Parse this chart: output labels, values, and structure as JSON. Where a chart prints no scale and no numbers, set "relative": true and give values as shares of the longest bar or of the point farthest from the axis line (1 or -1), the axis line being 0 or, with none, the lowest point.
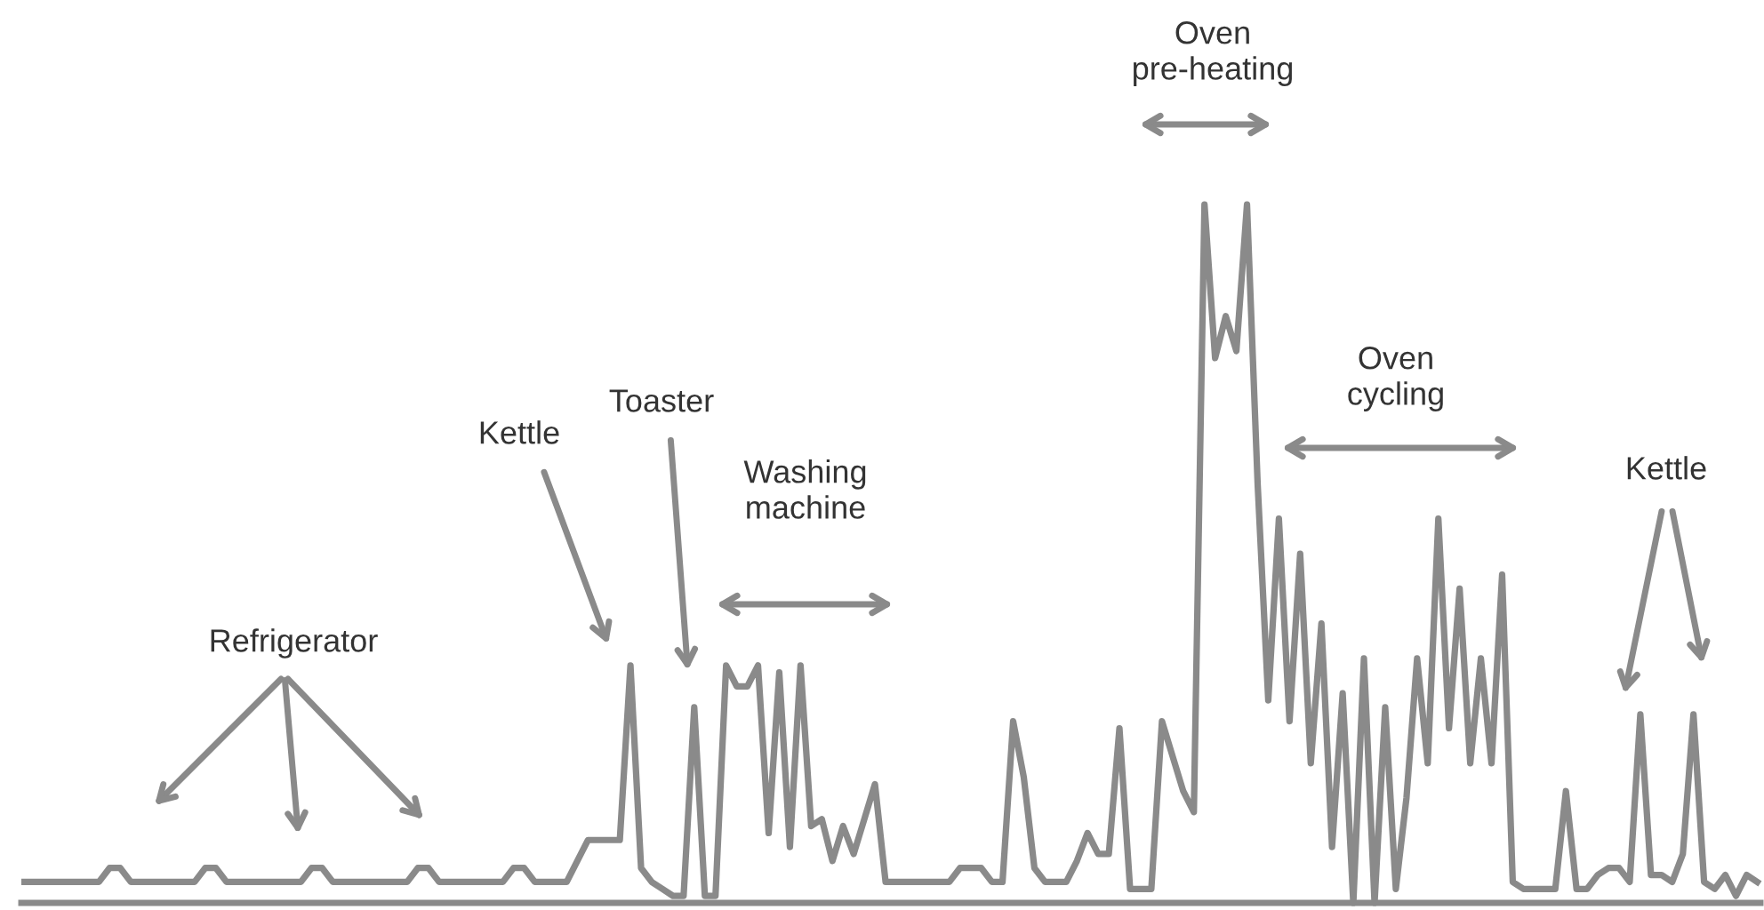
{
  "chart_data": {
    "type": "line",
    "relative": true,
    "categories": [
      null,
      null,
      null,
      null,
      null,
      null,
      null,
      null,
      null,
      null,
      null,
      null,
      null,
      null,
      null,
      null,
      null,
      null,
      null,
      null,
      null,
      null,
      null,
      null,
      null,
      null,
      null,
      null,
      null,
      null,
      null,
      null,
      null,
      null,
      null,
      null,
      null,
      null,
      null,
      null,
      null,
      null,
      null,
      null,
      null,
      null,
      null,
      null,
      null,
      null,
      null,
      null,
      null,
      null,
      null,
      null,
      null,
      null,
      null,
      null,
      null,
      null,
      null,
      null,
      null,
      null,
      null,
      null,
      null,
      null,
      null,
      null,
      null,
      null,
      null,
      null,
      null,
      null,
      null,
      null,
      null,
      null,
      null,
      null,
      null,
      null,
      null,
      null,
      null,
      null,
      null,
      null,
      null,
      null,
      null,
      null,
      null,
      null,
      null,
      null,
      null,
      null,
      null,
      null,
      null,
      null,
      null,
      null,
      null,
      null,
      null,
      null,
      null,
      null,
      null,
      null,
      null,
      null,
      null,
      null,
      null,
      null,
      null,
      null,
      null,
      null,
      null,
      null,
      null,
      null,
      null,
      null,
      null,
      null,
      null,
      null,
      null,
      null,
      null,
      null,
      null,
      null,
      null,
      null,
      null,
      null,
      null,
      null,
      null,
      null,
      null,
      null,
      null,
      null,
      null,
      null,
      null,
      null,
      null,
      null,
      null,
      null,
      null,
      null
    ],
    "series": [
      {
        "color": "#8a8a8a",
        "values": [
          0.03,
          0.03,
          0.03,
          0.03,
          0.03,
          0.03,
          0.03,
          0.03,
          0.05,
          0.05,
          0.03,
          0.03,
          0.03,
          0.03,
          0.03,
          0.03,
          0.03,
          0.05,
          0.05,
          0.03,
          0.03,
          0.03,
          0.03,
          0.03,
          0.03,
          0.03,
          0.03,
          0.05,
          0.05,
          0.03,
          0.03,
          0.03,
          0.03,
          0.03,
          0.03,
          0.03,
          0.03,
          0.05,
          0.05,
          0.03,
          0.03,
          0.03,
          0.03,
          0.03,
          0.03,
          0.03,
          0.05,
          0.05,
          0.03,
          0.03,
          0.03,
          0.03,
          0.06,
          0.09,
          0.09,
          0.09,
          0.09,
          0.34,
          0.05,
          0.03,
          0.02,
          0.01,
          0.01,
          0.28,
          0.01,
          0.01,
          0.34,
          0.31,
          0.31,
          0.34,
          0.1,
          0.33,
          0.08,
          0.34,
          0.11,
          0.12,
          0.06,
          0.11,
          0.07,
          0.12,
          0.17,
          0.03,
          0.03,
          0.03,
          0.03,
          0.03,
          0.03,
          0.03,
          0.05,
          0.05,
          0.05,
          0.03,
          0.03,
          0.26,
          0.18,
          0.05,
          0.03,
          0.03,
          0.03,
          0.06,
          0.1,
          0.07,
          0.07,
          0.25,
          0.02,
          0.02,
          0.02,
          0.26,
          0.21,
          0.16,
          0.13,
          1.0,
          0.78,
          0.84,
          0.79,
          1.0,
          0.6,
          0.29,
          0.55,
          0.26,
          0.5,
          0.2,
          0.4,
          0.08,
          0.3,
          0.0,
          0.35,
          0.0,
          0.28,
          0.02,
          0.15,
          0.35,
          0.2,
          0.55,
          0.25,
          0.45,
          0.2,
          0.35,
          0.2,
          0.47,
          0.03,
          0.02,
          0.02,
          0.02,
          0.02,
          0.16,
          0.02,
          0.02,
          0.04,
          0.05,
          0.05,
          0.03,
          0.27,
          0.04,
          0.04,
          0.03,
          0.07,
          0.27,
          0.03,
          0.02,
          0.04,
          0.01,
          0.04,
          0.03
        ]
      }
    ],
    "annotations": [
      "Refrigerator",
      "Kettle",
      "Toaster",
      "Washing\nmachine",
      "Oven\npre-heating",
      "Oven\ncycling",
      "Kettle"
    ]
  }
}
